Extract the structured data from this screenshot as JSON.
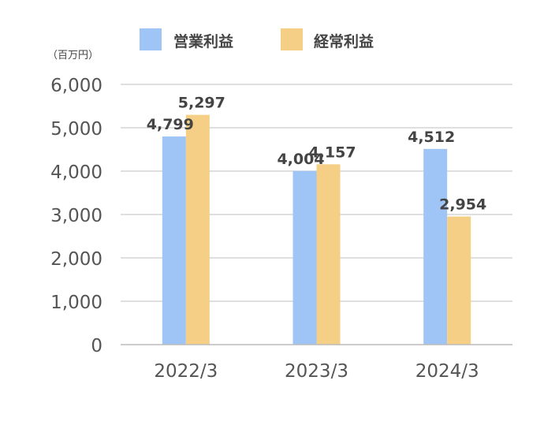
{
  "chart_data": {
    "type": "bar",
    "unit_label": "（百万円）",
    "categories": [
      "2022/3",
      "2023/3",
      "2024/3"
    ],
    "series": [
      {
        "name": "営業利益",
        "values": [
          4799,
          4004,
          4512
        ],
        "labels": [
          "4,799",
          "4,004",
          "4,512"
        ],
        "color": "#9EC5F5"
      },
      {
        "name": "経常利益",
        "values": [
          5297,
          4157,
          2954
        ],
        "labels": [
          "5,297",
          "4,157",
          "2,954"
        ],
        "color": "#F4CF85"
      }
    ],
    "ylim": [
      0,
      6000
    ],
    "yticks": [
      0,
      1000,
      2000,
      3000,
      4000,
      5000,
      6000
    ],
    "ytick_labels": [
      "0",
      "1,000",
      "2,000",
      "3,000",
      "4,000",
      "5,000",
      "6,000"
    ],
    "grid": true,
    "legend_position": "top",
    "colors": {
      "grid": "#CCCCCC",
      "axis": "#BBBBBB",
      "text": "#444444",
      "tick_text": "#555555"
    }
  }
}
